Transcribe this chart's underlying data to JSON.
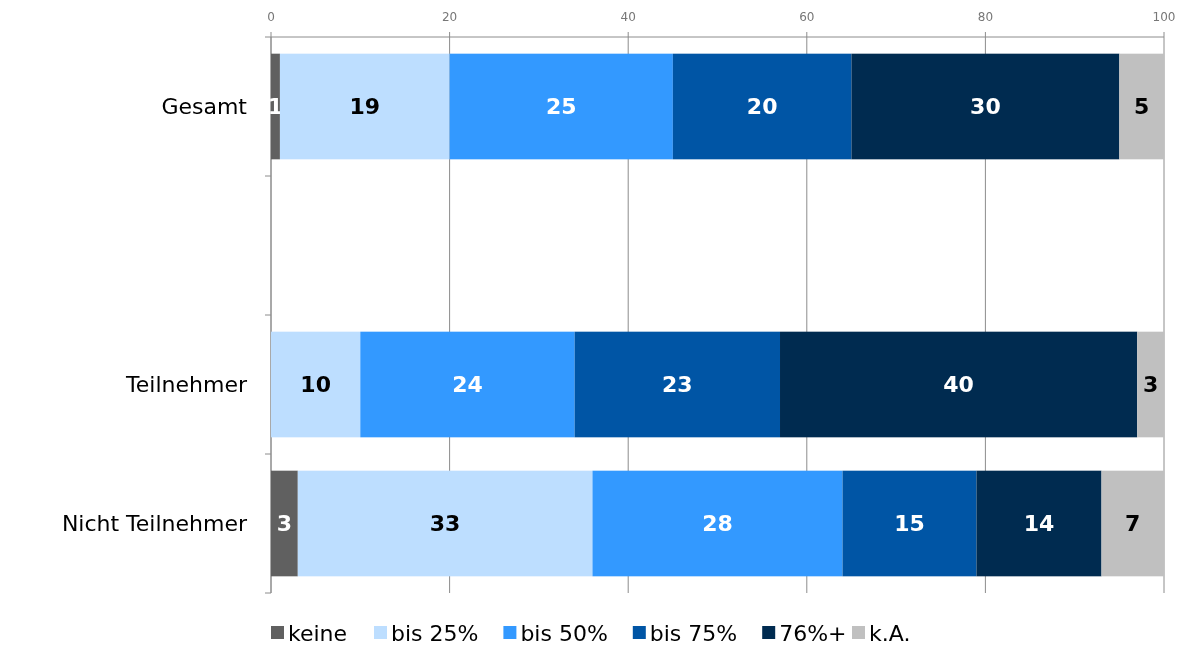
{
  "chart_data": {
    "type": "bar",
    "orientation": "horizontal",
    "stacked": true,
    "categories": [
      "Gesamt",
      null,
      "Teilnehmer",
      "Nicht Teilnehmer"
    ],
    "series": [
      {
        "name": "keine",
        "color": "#606060",
        "values": [
          1,
          null,
          null,
          3
        ]
      },
      {
        "name": "bis 25%",
        "color": "#bddeff",
        "values": [
          19,
          null,
          10,
          33
        ]
      },
      {
        "name": "bis 50%",
        "color": "#3399ff",
        "values": [
          25,
          null,
          24,
          28
        ]
      },
      {
        "name": "bis 75%",
        "color": "#0055a5",
        "values": [
          20,
          null,
          23,
          15
        ]
      },
      {
        "name": "76%+",
        "color": "#002b50",
        "values": [
          30,
          null,
          40,
          14
        ]
      },
      {
        "name": "k.A.",
        "color": "#c0c0c0",
        "values": [
          5,
          null,
          3,
          7
        ]
      }
    ],
    "xlim": [
      0,
      100
    ],
    "xticks": [
      0,
      20,
      40,
      60,
      80,
      100
    ],
    "grid": "x",
    "legend": "bottom",
    "data_labels": true
  }
}
